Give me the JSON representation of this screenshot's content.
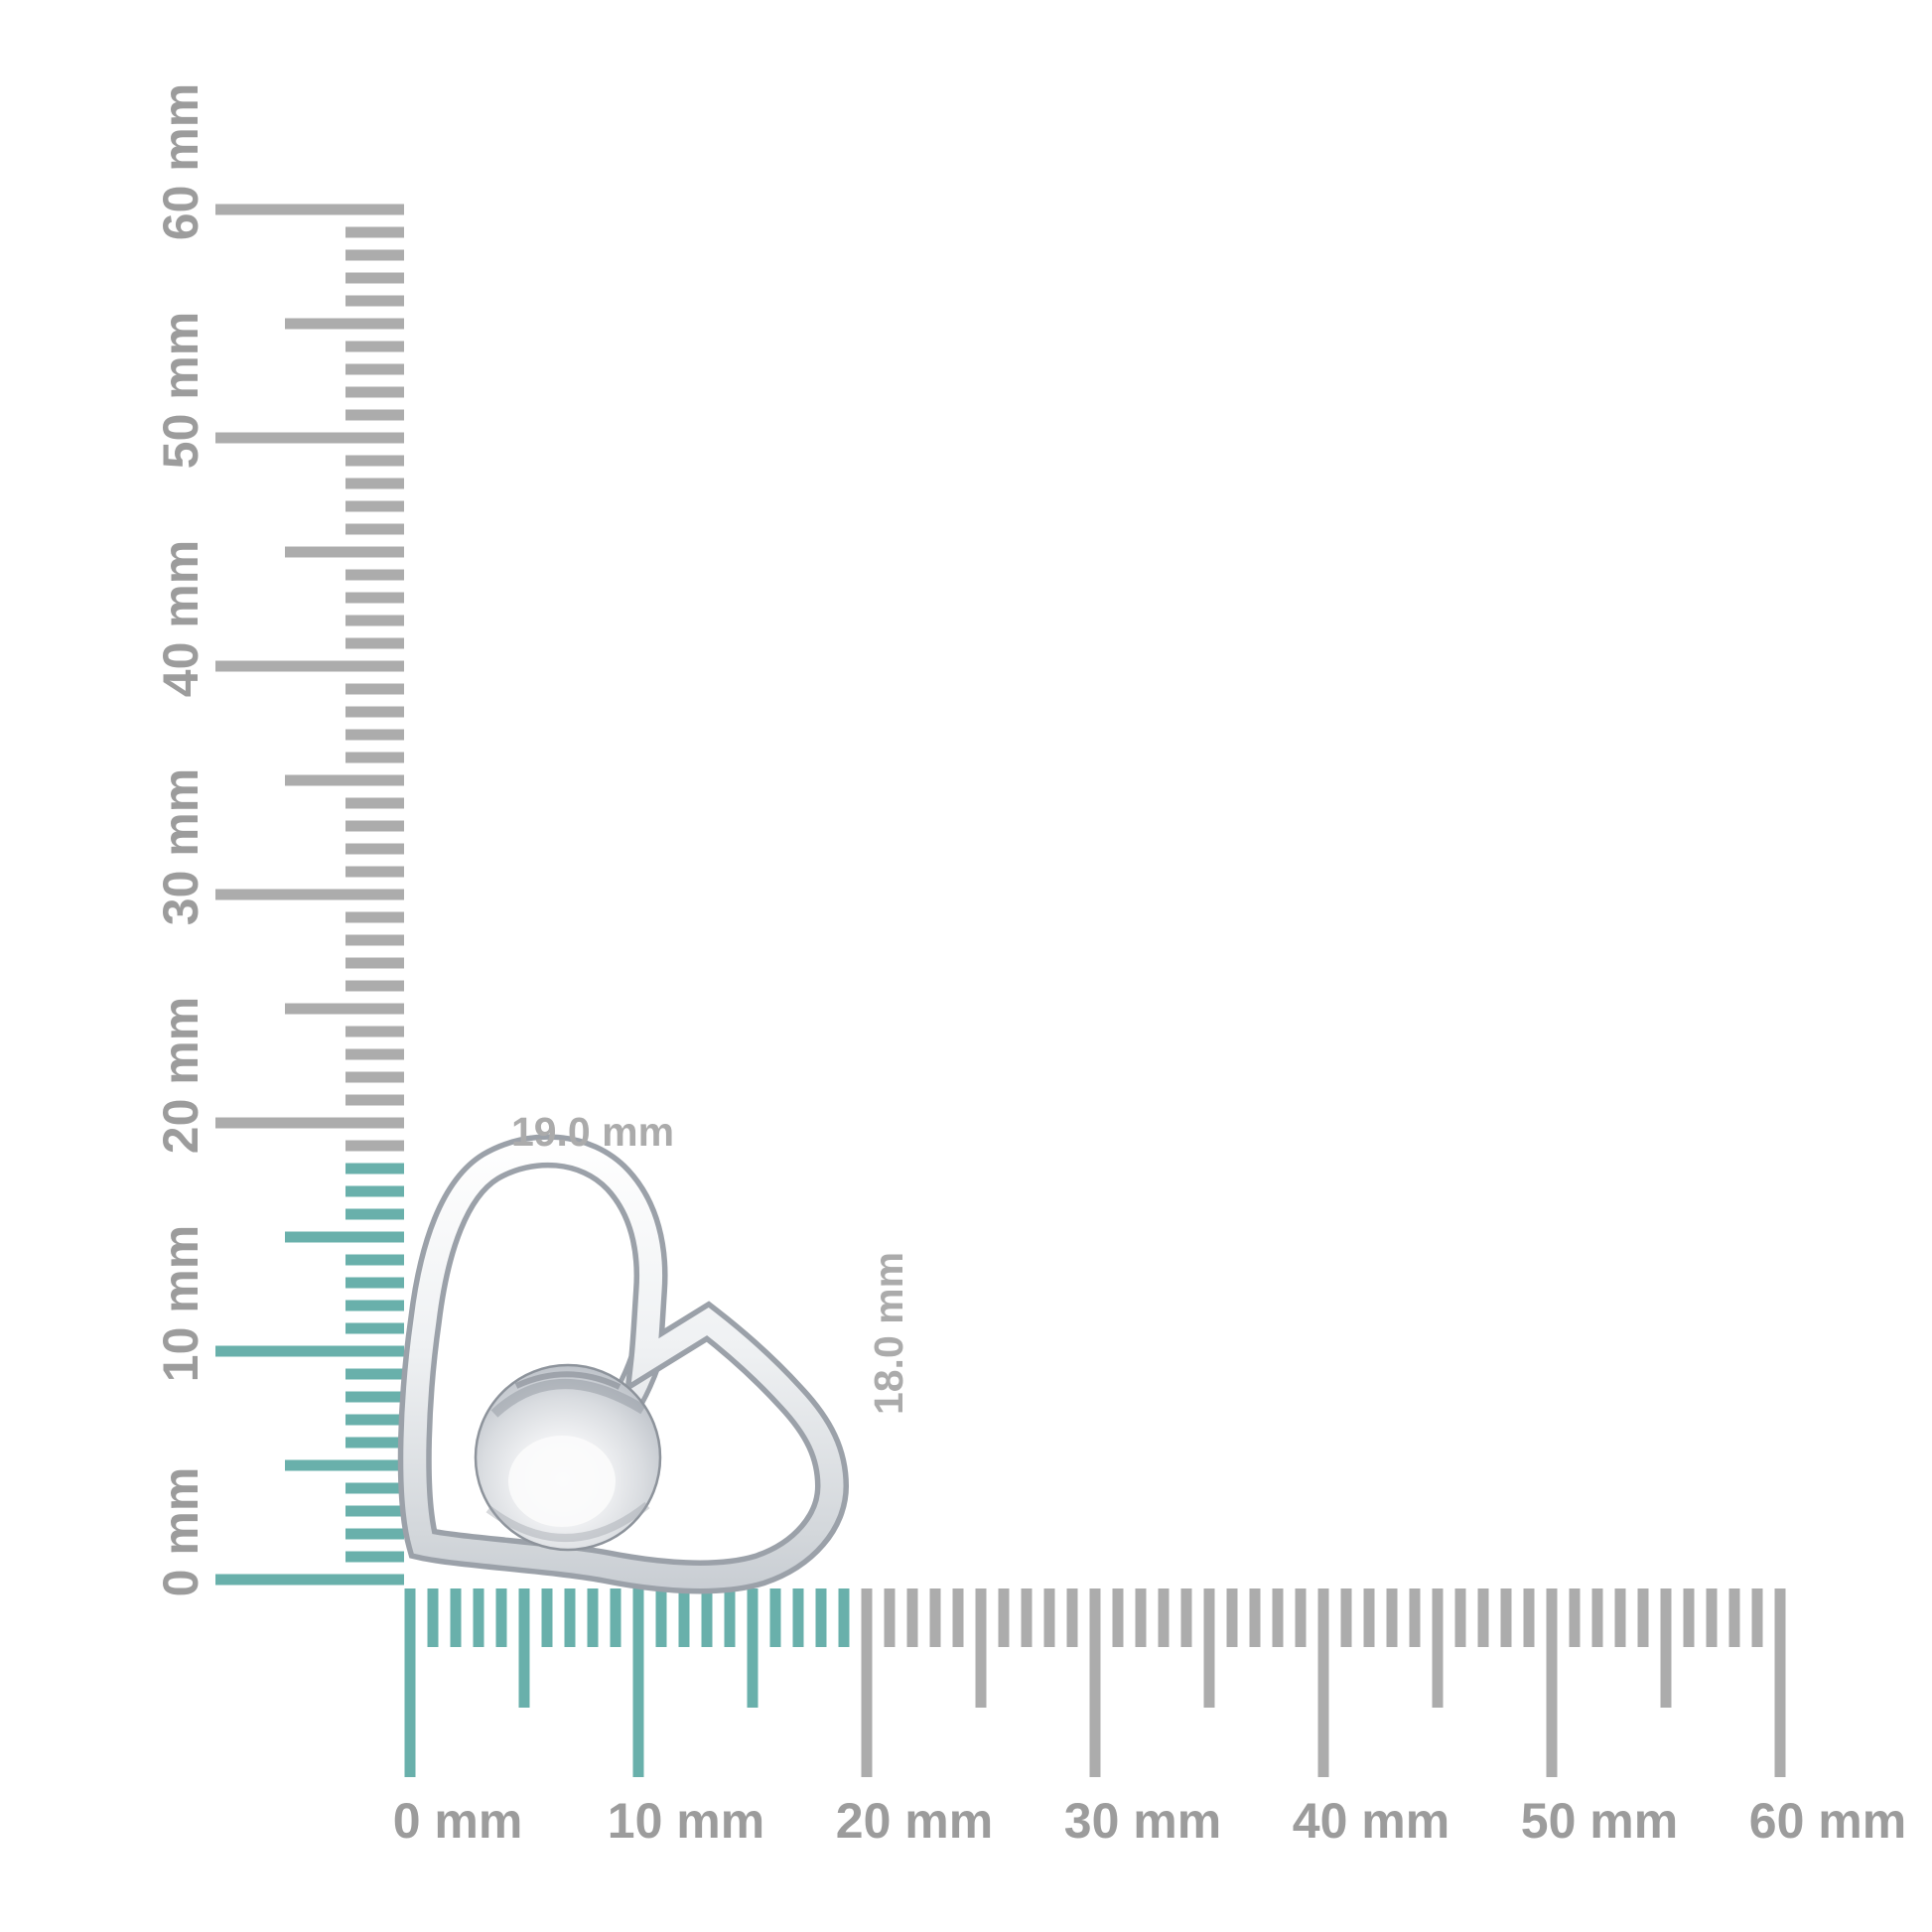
{
  "figure": {
    "type": "product measurement image",
    "background_color": "#ffffff"
  },
  "rulers": {
    "unit": "mm",
    "range_mm": [
      0,
      60
    ],
    "minor_step_mm": 1,
    "half_step_mm": 5,
    "major_step_mm": 10,
    "tick_color_normal": "#ACACAC",
    "tick_color_highlight": "#69B0AB",
    "label_color": "#9C9C9C",
    "vertical": {
      "side": "left",
      "labels": [
        "0 mm",
        "10 mm",
        "20 mm",
        "30 mm",
        "40 mm",
        "50 mm",
        "60 mm"
      ],
      "highlight_extent_mm": 18
    },
    "horizontal": {
      "side": "bottom",
      "labels": [
        "0 mm",
        "10 mm",
        "20 mm",
        "30 mm",
        "40 mm",
        "50 mm",
        "60 mm"
      ],
      "highlight_extent_mm": 19
    }
  },
  "measurements": {
    "width": {
      "label": "19.0 mm",
      "value_mm": 19.0
    },
    "height": {
      "label": "18.0 mm",
      "value_mm": 18.0
    },
    "label_color": "#ABABAB"
  },
  "item": {
    "description": "polished open heart pendant with ball accent",
    "metal_light": "#FBFCFD",
    "metal_mid": "#D9DCE1",
    "metal_dark": "#9BA1A9"
  }
}
